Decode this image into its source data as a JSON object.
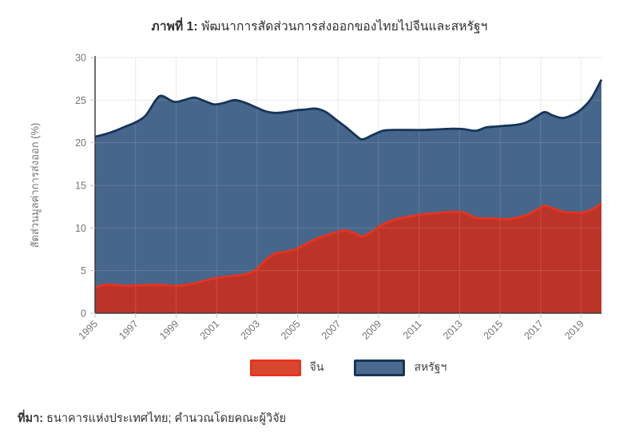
{
  "title": {
    "prefix": "ภาพที่ 1:",
    "rest": " พัฒนาการสัดส่วนการส่งออกของไทยไปจีนและสหรัฐฯ"
  },
  "source": {
    "prefix": "ที่มา:",
    "rest": " ธนาคารแห่งประเทศไทย; คำนวณโดยคณะผู้วิจัย"
  },
  "legend": {
    "items": [
      {
        "label": "จีน",
        "fill": "#d9472f",
        "stroke": "#e8331f"
      },
      {
        "label": "สหรัฐฯ",
        "fill": "#4a6b8f",
        "stroke": "#17345a"
      }
    ]
  },
  "colors": {
    "china_fill": "#bc3428",
    "china_line": "#e8331f",
    "usa_fill": "#47668c",
    "usa_line": "#17345a",
    "grid": "#e7e7e7",
    "grid_over_area": "#ffffff",
    "axis": "#3c3c3c",
    "tick": "#cccccc",
    "tick_label": "#757575"
  },
  "chart_data": {
    "type": "area",
    "stacked": true,
    "title": "ภาพที่ 1: พัฒนาการสัดส่วนการส่งออกของไทยไปจีนและสหรัฐฯ",
    "xlabel": "",
    "ylabel": "สัดส่วนมูลค่าการส่งออก (%)",
    "xlim": [
      1995,
      2020
    ],
    "ylim": [
      0,
      30
    ],
    "yticks": [
      0,
      5,
      10,
      15,
      20,
      25,
      30
    ],
    "xticks": [
      1995,
      1997,
      1999,
      2001,
      2003,
      2005,
      2007,
      2009,
      2011,
      2013,
      2015,
      2017,
      2019
    ],
    "grid": true,
    "legend_position": "bottom",
    "x": [
      1995.0,
      1995.5,
      1996.0,
      1996.5,
      1997.0,
      1997.5,
      1998.0,
      1998.3,
      1998.9,
      1999.4,
      1999.9,
      2000.4,
      2000.9,
      2001.4,
      2001.9,
      2002.4,
      2002.9,
      2003.4,
      2003.9,
      2004.4,
      2004.9,
      2005.4,
      2005.9,
      2006.4,
      2006.9,
      2007.4,
      2007.9,
      2008.2,
      2008.7,
      2009.2,
      2009.7,
      2010.2,
      2010.7,
      2011.2,
      2011.7,
      2012.2,
      2012.7,
      2013.2,
      2013.8,
      2014.3,
      2014.8,
      2015.3,
      2015.8,
      2016.3,
      2016.8,
      2017.2,
      2017.6,
      2018.1,
      2018.6,
      2019.0,
      2019.5,
      2020.0
    ],
    "series": [
      {
        "name": "จีน",
        "values": [
          3.0,
          3.35,
          3.3,
          3.2,
          3.25,
          3.3,
          3.35,
          3.3,
          3.2,
          3.3,
          3.5,
          3.8,
          4.1,
          4.25,
          4.4,
          4.55,
          5.0,
          6.2,
          7.0,
          7.2,
          7.5,
          8.1,
          8.7,
          9.1,
          9.5,
          9.7,
          9.3,
          9.0,
          9.6,
          10.4,
          10.9,
          11.2,
          11.4,
          11.6,
          11.7,
          11.8,
          11.9,
          11.8,
          11.2,
          11.1,
          11.1,
          11.0,
          11.2,
          11.5,
          12.1,
          12.6,
          12.3,
          11.9,
          11.8,
          11.8,
          12.1,
          12.9
        ]
      },
      {
        "name": "สหรัฐฯ",
        "values": [
          17.7,
          17.65,
          18.1,
          18.7,
          19.15,
          19.9,
          21.65,
          22.2,
          21.6,
          21.7,
          21.8,
          21.1,
          20.4,
          20.45,
          20.6,
          20.15,
          19.2,
          17.5,
          16.5,
          16.4,
          16.3,
          15.8,
          15.3,
          14.5,
          13.2,
          12.1,
          11.5,
          11.4,
          11.3,
          11.0,
          10.6,
          10.3,
          10.1,
          9.9,
          9.85,
          9.8,
          9.75,
          9.8,
          10.2,
          10.7,
          10.8,
          11.0,
          10.9,
          10.9,
          11.0,
          11.0,
          10.9,
          11.0,
          11.5,
          12.1,
          13.1,
          14.5
        ]
      }
    ]
  }
}
